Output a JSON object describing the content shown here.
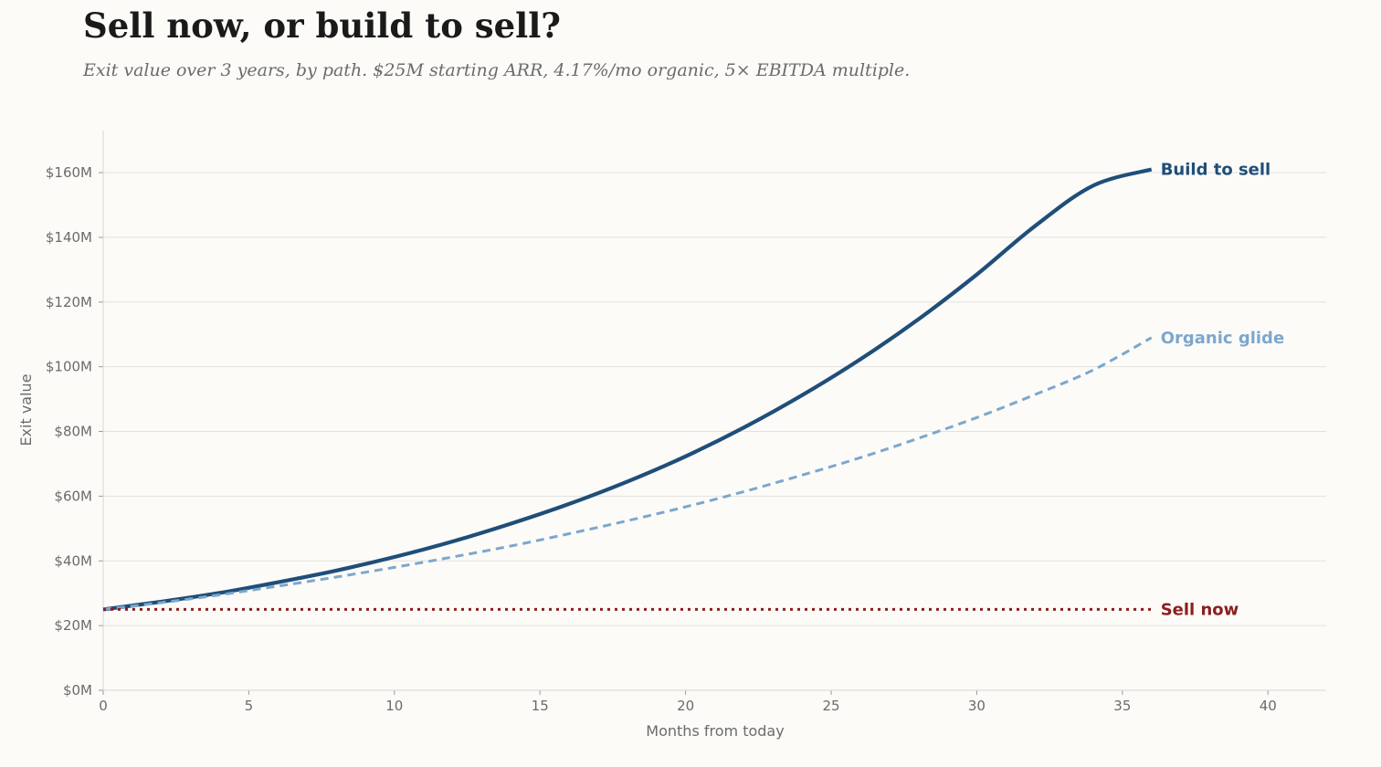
{
  "chart_data": {
    "type": "line",
    "title": "Sell now, or build to sell?",
    "subtitle": "Exit value over 3 years, by path. $25M starting ARR, 4.17%/mo organic, 5× EBITDA multiple.",
    "xlabel": "Months from today",
    "ylabel": "Exit value",
    "xlim": [
      0,
      42
    ],
    "ylim": [
      0,
      173
    ],
    "x_ticks": [
      0,
      5,
      10,
      15,
      20,
      25,
      30,
      35,
      40
    ],
    "y_ticks": [
      0,
      20,
      40,
      60,
      80,
      100,
      120,
      140,
      160
    ],
    "y_tick_labels": [
      "$0M",
      "$20M",
      "$40M",
      "$60M",
      "$80M",
      "$100M",
      "$120M",
      "$140M",
      "$160M"
    ],
    "grid": "horizontal",
    "x": [
      0,
      2,
      4,
      6,
      8,
      10,
      12,
      14,
      16,
      18,
      20,
      22,
      24,
      26,
      28,
      30,
      32,
      34,
      36
    ],
    "series": [
      {
        "name": "Build to sell",
        "color": "#1f4e79",
        "style": "solid",
        "values": [
          25,
          27.4,
          30.1,
          33.4,
          37.0,
          41.2,
          46.0,
          51.5,
          57.6,
          64.5,
          72.3,
          81.2,
          91.2,
          102.3,
          114.7,
          128.5,
          143.5,
          156.0,
          161
        ]
      },
      {
        "name": "Organic glide",
        "color": "#7da7cc",
        "style": "dashed",
        "values": [
          25,
          27.1,
          29.5,
          32.2,
          35.0,
          38.0,
          41.2,
          44.6,
          48.4,
          52.4,
          56.7,
          61.4,
          66.5,
          71.9,
          77.9,
          84.3,
          91.4,
          99.0,
          109
        ]
      },
      {
        "name": "Sell now",
        "color": "#8b1e1e",
        "style": "dotted",
        "values": [
          25,
          25,
          25,
          25,
          25,
          25,
          25,
          25,
          25,
          25,
          25,
          25,
          25,
          25,
          25,
          25,
          25,
          25,
          25
        ]
      }
    ]
  }
}
